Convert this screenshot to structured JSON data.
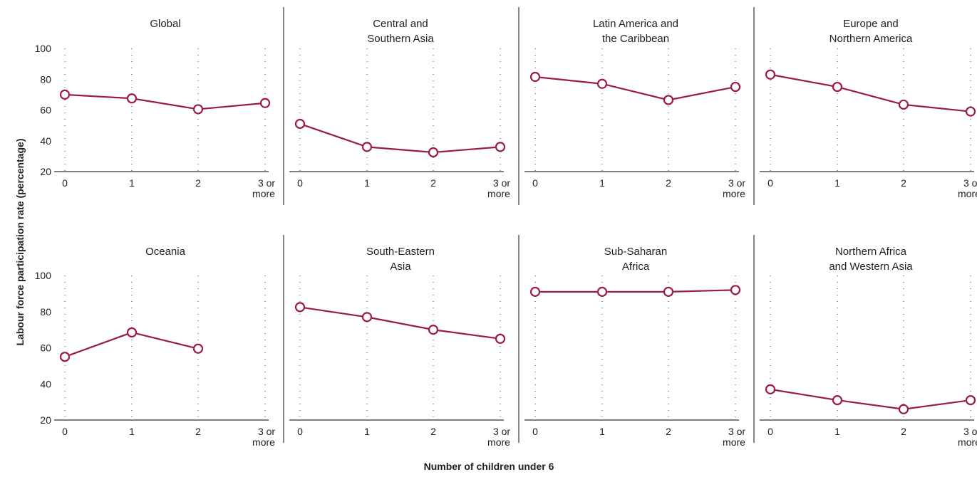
{
  "chart_data": {
    "type": "line",
    "ylabel": "Labour force participation rate (percentage)",
    "xlabel": "Number of children under 6",
    "categories": [
      "0",
      "1",
      "2",
      "3 or more"
    ],
    "ylim": [
      20,
      100
    ],
    "yticks": [
      "20",
      "40",
      "60",
      "80",
      "100"
    ],
    "grid": "vertical dotted",
    "line_color": "#9b1b48",
    "panels": [
      {
        "title": [
          "Global"
        ],
        "values": [
          70,
          67.5,
          60.5,
          64.5
        ]
      },
      {
        "title": [
          "Central and",
          "Southern Asia"
        ],
        "values": [
          51,
          36,
          32.5,
          36
        ]
      },
      {
        "title": [
          "Latin America and",
          "the Caribbean"
        ],
        "values": [
          81.5,
          77,
          66.5,
          75
        ]
      },
      {
        "title": [
          "Europe and",
          "Northern America"
        ],
        "values": [
          83,
          75,
          63.5,
          59
        ]
      },
      {
        "title": [
          "Oceania"
        ],
        "values": [
          55,
          68.5,
          59.5,
          null
        ]
      },
      {
        "title": [
          "South-Eastern",
          "Asia"
        ],
        "values": [
          82.5,
          77,
          70,
          65
        ]
      },
      {
        "title": [
          "Sub-Saharan",
          "Africa"
        ],
        "values": [
          91,
          91,
          91,
          92
        ]
      },
      {
        "title": [
          "Northern Africa",
          "and Western Asia"
        ],
        "values": [
          37,
          31,
          26,
          31
        ]
      }
    ]
  }
}
